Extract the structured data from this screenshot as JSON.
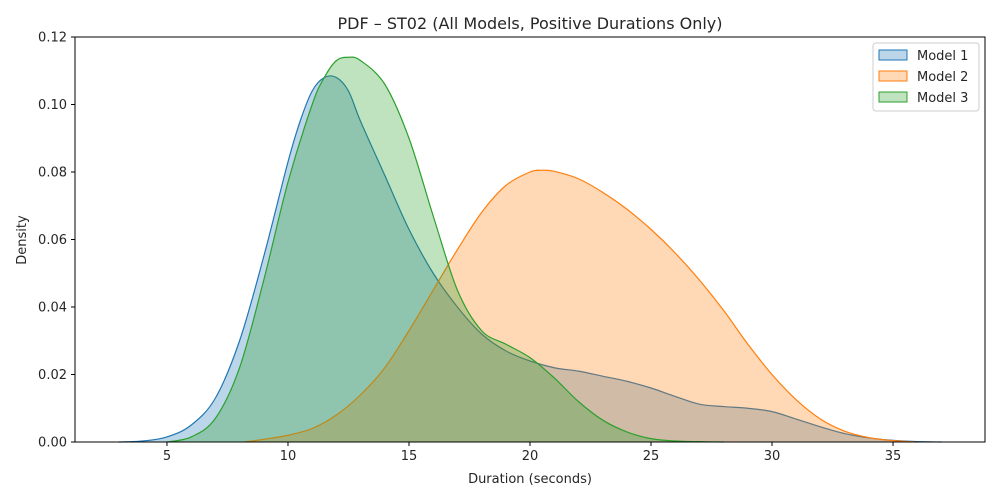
{
  "chart_data": {
    "type": "area",
    "title": "PDF – ST02 (All Models, Positive Durations Only)",
    "xlabel": "Duration (seconds)",
    "ylabel": "Density",
    "xlim": [
      1.2,
      38.8
    ],
    "ylim": [
      0,
      0.12
    ],
    "xticks": [
      5,
      10,
      15,
      20,
      25,
      30,
      35
    ],
    "yticks": [
      0.0,
      0.02,
      0.04,
      0.06,
      0.08,
      0.1,
      0.12
    ],
    "grid": false,
    "legend_position": "top-right",
    "series": [
      {
        "name": "Model 1",
        "color": "#1f77b4",
        "x": [
          3.0,
          4.0,
          5.0,
          6.0,
          7.0,
          8.0,
          9.0,
          10.0,
          10.5,
          11.0,
          11.5,
          12.0,
          12.5,
          13.0,
          14.0,
          15.0,
          16.0,
          17.0,
          18.0,
          19.0,
          20.0,
          21.0,
          22.0,
          23.0,
          24.0,
          25.0,
          26.0,
          27.0,
          28.0,
          29.0,
          30.0,
          31.0,
          32.0,
          33.0,
          34.0,
          35.0,
          36.0,
          37.0
        ],
        "y": [
          0.0,
          0.0003,
          0.0015,
          0.005,
          0.013,
          0.03,
          0.055,
          0.083,
          0.095,
          0.104,
          0.108,
          0.108,
          0.104,
          0.095,
          0.079,
          0.063,
          0.05,
          0.04,
          0.032,
          0.027,
          0.024,
          0.022,
          0.021,
          0.0195,
          0.018,
          0.016,
          0.0135,
          0.0112,
          0.0105,
          0.01,
          0.009,
          0.0068,
          0.0045,
          0.0025,
          0.0012,
          0.0005,
          0.0001,
          0.0
        ]
      },
      {
        "name": "Model 2",
        "color": "#ff7f0e",
        "x": [
          8.2,
          9.0,
          10.0,
          11.0,
          12.0,
          13.0,
          14.0,
          15.0,
          16.0,
          17.0,
          18.0,
          19.0,
          20.0,
          20.5,
          21.0,
          22.0,
          23.0,
          24.0,
          25.0,
          26.0,
          27.0,
          28.0,
          29.0,
          30.0,
          31.0,
          32.0,
          33.0,
          34.0,
          35.0,
          36.0
        ],
        "y": [
          0.0,
          0.0008,
          0.002,
          0.004,
          0.008,
          0.014,
          0.022,
          0.033,
          0.045,
          0.057,
          0.068,
          0.076,
          0.08,
          0.0805,
          0.0802,
          0.078,
          0.074,
          0.069,
          0.063,
          0.056,
          0.048,
          0.039,
          0.029,
          0.02,
          0.0125,
          0.0068,
          0.0032,
          0.0013,
          0.0004,
          0.0
        ]
      },
      {
        "name": "Model 3",
        "color": "#2ca02c",
        "x": [
          5.0,
          6.0,
          7.0,
          8.0,
          9.0,
          10.0,
          11.0,
          11.5,
          12.0,
          12.5,
          13.0,
          14.0,
          15.0,
          16.0,
          17.0,
          18.0,
          19.0,
          20.0,
          21.0,
          22.0,
          23.0,
          24.0,
          25.0,
          26.0,
          27.0,
          28.0
        ],
        "y": [
          0.0,
          0.0015,
          0.007,
          0.022,
          0.048,
          0.077,
          0.1,
          0.108,
          0.113,
          0.114,
          0.113,
          0.106,
          0.09,
          0.067,
          0.045,
          0.033,
          0.029,
          0.025,
          0.019,
          0.012,
          0.0065,
          0.003,
          0.001,
          0.0003,
          0.0001,
          0.0
        ]
      }
    ]
  }
}
